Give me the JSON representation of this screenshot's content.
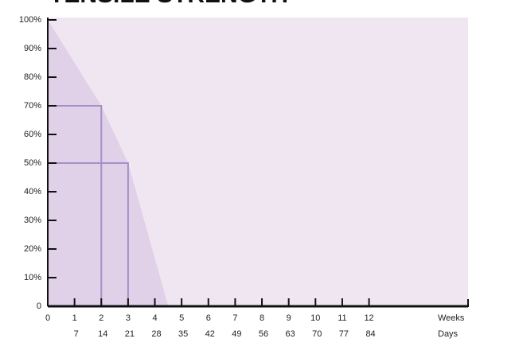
{
  "chart_data": {
    "type": "area",
    "title": "TENSILE STRENGTH",
    "x": [
      0,
      2,
      3,
      4.5
    ],
    "values": [
      100,
      70,
      50,
      0
    ],
    "color": "#e0d0e8",
    "line_color": "#a590c8",
    "background": "#efe6f1",
    "xlim": [
      0,
      15.7
    ],
    "xticks": [
      0,
      1,
      2,
      3,
      4,
      5,
      6,
      7,
      8,
      9,
      10,
      11,
      12
    ],
    "xlabel": "Weeks",
    "x2lim": [
      0,
      109.9
    ],
    "x2ticks": [
      7,
      14,
      21,
      28,
      35,
      42,
      49,
      56,
      63,
      70,
      77,
      84
    ],
    "x2label": "Days",
    "ylim": [
      0,
      100
    ],
    "yticks": [
      0,
      {
        "value": 10,
        "label": "10%"
      },
      {
        "value": 20,
        "label": "20%"
      },
      {
        "value": 30,
        "label": "30%"
      },
      {
        "value": 40,
        "label": "40%"
      },
      {
        "value": 50,
        "label": "50%"
      },
      {
        "value": 60,
        "label": "60%"
      },
      {
        "value": 70,
        "label": "70%"
      },
      {
        "value": 80,
        "label": "80%"
      },
      {
        "value": 90,
        "label": "90%"
      },
      {
        "value": 100,
        "label": "100%"
      }
    ],
    "reference_points": [
      1,
      2
    ]
  }
}
